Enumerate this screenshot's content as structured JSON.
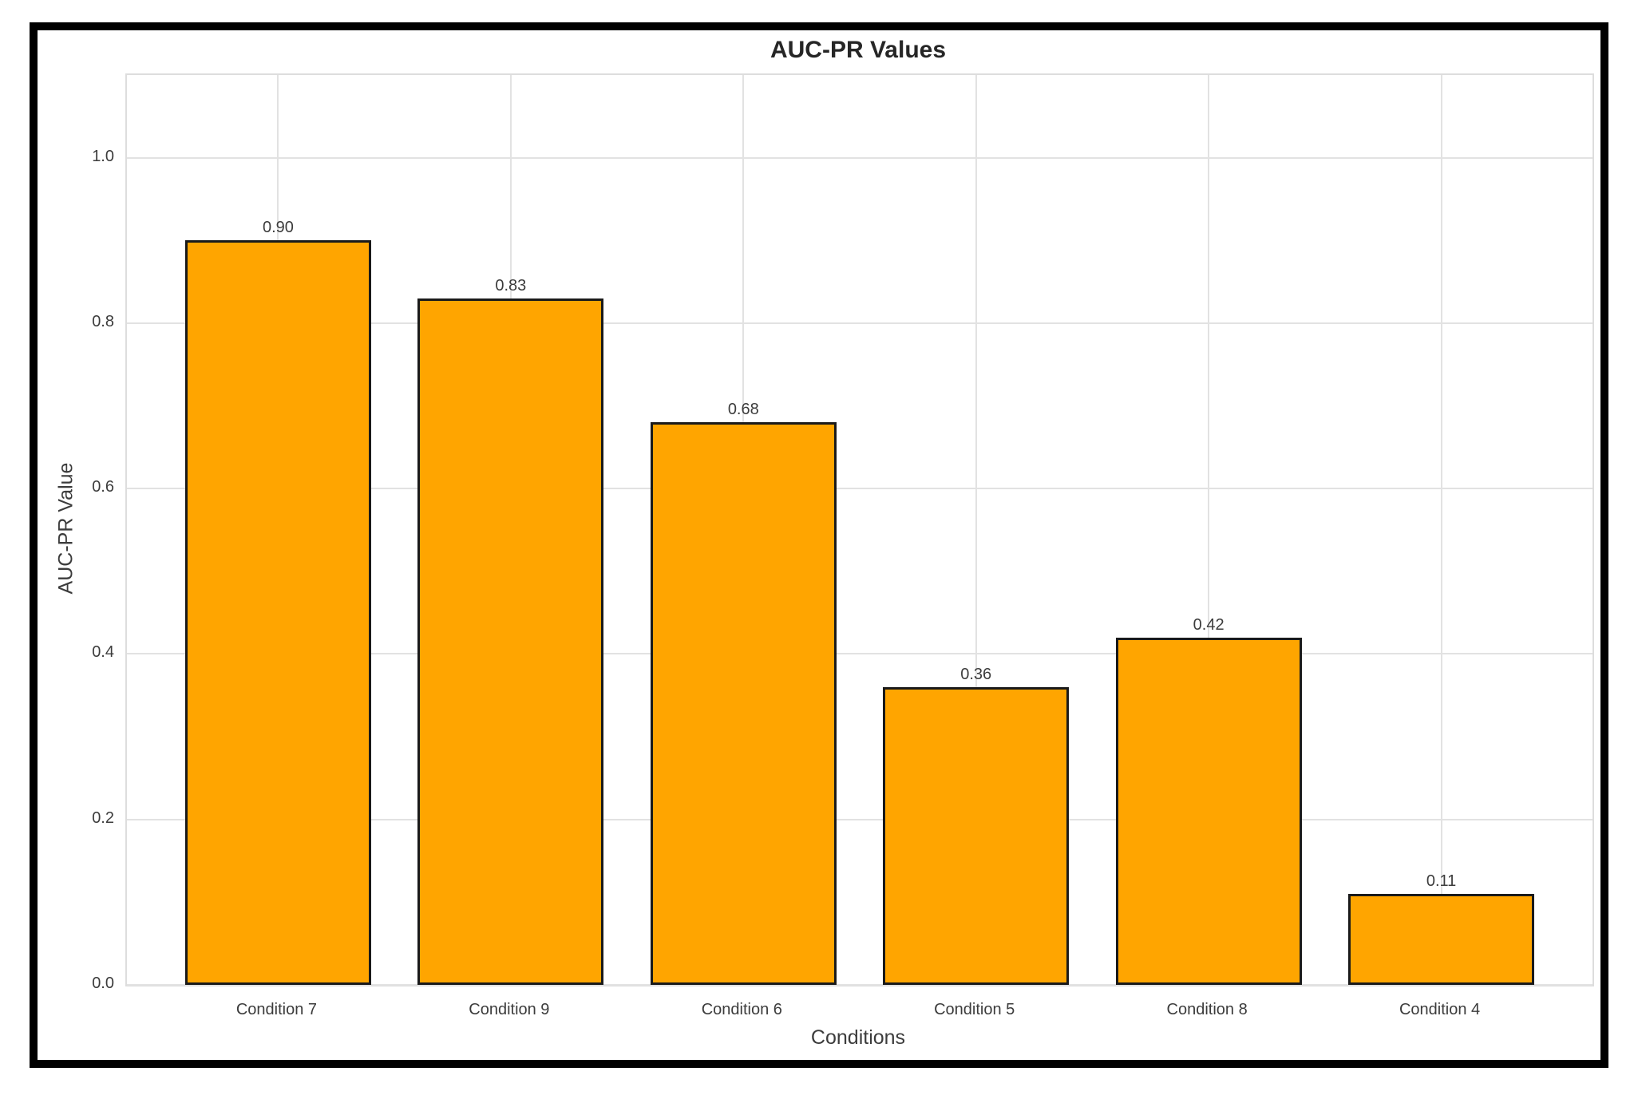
{
  "chart_data": {
    "type": "bar",
    "title": "AUC-PR Values",
    "xlabel": "Conditions",
    "ylabel": "AUC-PR Value",
    "categories": [
      "Condition 7",
      "Condition 9",
      "Condition 6",
      "Condition 5",
      "Condition 8",
      "Condition 4"
    ],
    "values": [
      0.9,
      0.83,
      0.68,
      0.36,
      0.42,
      0.11
    ],
    "value_labels": [
      "0.90",
      "0.83",
      "0.68",
      "0.36",
      "0.42",
      "0.11"
    ],
    "ytick_labels": [
      "0.0",
      "0.2",
      "0.4",
      "0.6",
      "0.8",
      "1.0"
    ],
    "yticks": [
      0.0,
      0.2,
      0.4,
      0.6,
      0.8,
      1.0
    ],
    "ylim": [
      0,
      1.1
    ],
    "grid": true,
    "legend": false,
    "bar_color": "#FFA500",
    "bar_edge_color": "#1A1A1A",
    "grid_color": "#E2E2E2",
    "tick_label_color": "#3C3C3C",
    "title_color": "#262626",
    "frame_border_color": "#000000",
    "plot_background": "#FFFFFF"
  }
}
